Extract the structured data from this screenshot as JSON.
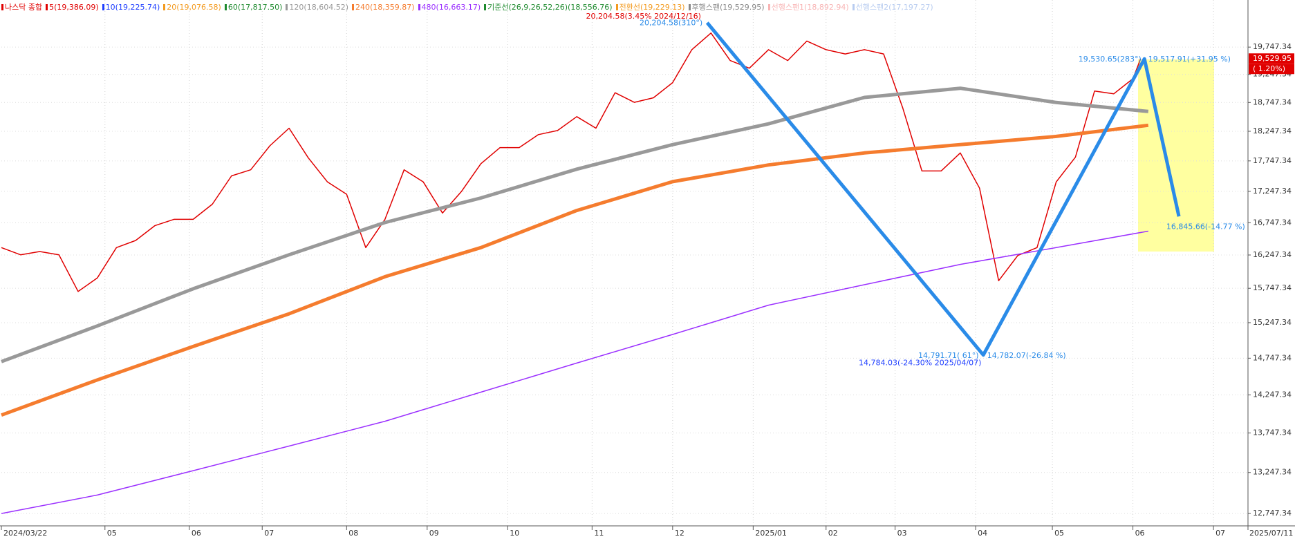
{
  "chart_data": {
    "type": "line",
    "log_scale": true,
    "grid": true,
    "xlim": [
      0,
      325
    ],
    "xticks": [
      {
        "value": 0,
        "label": "2024/03/22"
      },
      {
        "value": 27,
        "label": "05"
      },
      {
        "value": 49,
        "label": "06"
      },
      {
        "value": 68,
        "label": "07"
      },
      {
        "value": 90,
        "label": "08"
      },
      {
        "value": 111,
        "label": "09"
      },
      {
        "value": 132,
        "label": "10"
      },
      {
        "value": 154,
        "label": "11"
      },
      {
        "value": 175,
        "label": "12"
      },
      {
        "value": 196,
        "label": "2025/01"
      },
      {
        "value": 215,
        "label": "02"
      },
      {
        "value": 233,
        "label": "03"
      },
      {
        "value": 254,
        "label": "04"
      },
      {
        "value": 274,
        "label": "05"
      },
      {
        "value": 295,
        "label": "06"
      },
      {
        "value": 316,
        "label": "07"
      },
      {
        "value": 325,
        "label": "2025/07/11"
      }
    ],
    "ylim": [
      12600,
      20640
    ],
    "yticks": [
      {
        "value": 12747.34,
        "label": "12,747.34"
      },
      {
        "value": 13247.34,
        "label": "13,247.34"
      },
      {
        "value": 13747.34,
        "label": "13,747.34"
      },
      {
        "value": 14247.34,
        "label": "14,247.34"
      },
      {
        "value": 14747.34,
        "label": "14,747.34"
      },
      {
        "value": 15247.34,
        "label": "15,247.34"
      },
      {
        "value": 15747.34,
        "label": "15,747.34"
      },
      {
        "value": 16247.34,
        "label": "16,247.34"
      },
      {
        "value": 16747.34,
        "label": "16,747.34"
      },
      {
        "value": 17247.34,
        "label": "17,247.34"
      },
      {
        "value": 17747.34,
        "label": "17,747.34"
      },
      {
        "value": 18247.34,
        "label": "18,247.34"
      },
      {
        "value": 18747.34,
        "label": "18,747.34"
      },
      {
        "value": 19247.34,
        "label": "19,247.34"
      },
      {
        "value": 19747.34,
        "label": "19,747.34"
      }
    ],
    "series": [
      {
        "name": "나스닥 종합",
        "color": "#e00000",
        "width": 1.5,
        "x": [
          0,
          5,
          10,
          15,
          20,
          25,
          30,
          35,
          40,
          45,
          50,
          55,
          60,
          65,
          70,
          75,
          80,
          85,
          90,
          95,
          100,
          105,
          110,
          115,
          120,
          125,
          130,
          135,
          140,
          145,
          150,
          155,
          160,
          165,
          170,
          175,
          180,
          185,
          190,
          195,
          200,
          205,
          210,
          215,
          220,
          225,
          230,
          235,
          240,
          245,
          250,
          255,
          260,
          265,
          270,
          275,
          280,
          285,
          290,
          295,
          297
        ],
        "values": [
          16360,
          16250,
          16300,
          16250,
          15700,
          15900,
          16360,
          16470,
          16700,
          16800,
          16800,
          17040,
          17500,
          17600,
          18000,
          18300,
          17800,
          17400,
          17200,
          16360,
          16800,
          17600,
          17400,
          16900,
          17250,
          17700,
          17970,
          17970,
          18190,
          18260,
          18500,
          18300,
          18920,
          18750,
          18830,
          19100,
          19700,
          20010,
          19500,
          19360,
          19700,
          19500,
          19860,
          19700,
          19620,
          19700,
          19620,
          18650,
          17580,
          17580,
          17880,
          17300,
          15860,
          16240,
          16360,
          17400,
          17810,
          18950,
          18900,
          19170,
          19530
        ]
      },
      {
        "name": "5(19,386.09)",
        "color": "#e00000"
      },
      {
        "name": "10(19,225.74)",
        "color": "#1f3fff"
      },
      {
        "name": "20(19,076.58)",
        "color": "#f39a1e"
      },
      {
        "name": "60(17,817.50)",
        "color": "#1e8a2e"
      },
      {
        "name": "120(18,604.52)",
        "color": "#999999",
        "width": 5,
        "x": [
          0,
          25,
          50,
          75,
          100,
          125,
          150,
          175,
          200,
          225,
          250,
          275,
          299
        ],
        "values": [
          14700,
          15200,
          15740,
          16250,
          16750,
          17140,
          17610,
          18020,
          18375,
          18836,
          19000,
          18747,
          18590
        ]
      },
      {
        "name": "240(18,359.87)",
        "color": "#f57c2e",
        "width": 5,
        "x": [
          0,
          25,
          50,
          75,
          100,
          125,
          150,
          175,
          200,
          225,
          250,
          275,
          299
        ],
        "values": [
          13980,
          14450,
          14910,
          15375,
          15920,
          16360,
          16940,
          17405,
          17680,
          17880,
          18020,
          18160,
          18350
        ]
      },
      {
        "name": "480(16,663.17)",
        "color": "#9b30ff",
        "width": 1.5,
        "x": [
          0,
          25,
          50,
          75,
          100,
          125,
          150,
          175,
          200,
          225,
          250,
          275,
          299
        ],
        "values": [
          12747,
          12970,
          13270,
          13580,
          13900,
          14285,
          14680,
          15080,
          15500,
          15800,
          16105,
          16360,
          16615
        ]
      },
      {
        "name": "기준선(26,9,26,52,26)(18,556.76)",
        "color": "#1e8a2e"
      },
      {
        "name": "전환선(19,229.13)",
        "color": "#f39a1e"
      },
      {
        "name": "후행스팬(19,529.95)",
        "color": "#888888"
      },
      {
        "name": "선행스팬1(18,892.94)",
        "color": "#f8b4b4"
      },
      {
        "name": "선행스팬2(17,197.27)",
        "color": "#b8ccf0"
      }
    ],
    "zigzag": {
      "color": "#2a8be8",
      "x": [
        184,
        256,
        298,
        307
      ],
      "values": [
        20204.58,
        14791.71,
        19530.65,
        16845.66
      ]
    },
    "annotations": [
      {
        "text": "20,204.58(3.45% 2024/12/16)",
        "color": "#e00000",
        "anchor": "end",
        "x": 182.4,
        "y": 20322
      },
      {
        "text": "20,204.58(310°)",
        "color": "#2a8be8",
        "anchor": "end",
        "x": 182.8,
        "y": 20195
      },
      {
        "text": "14,791.71( 61°)",
        "color": "#2a8be8",
        "anchor": "end",
        "x": 254.8,
        "y": 14781
      },
      {
        "text": "14,782.07(-26.84 %)",
        "color": "#2a8be8",
        "anchor": "start",
        "x": 257,
        "y": 14781
      },
      {
        "text": "14,784.03(-24.30% 2025/04/07)",
        "color": "#1f3fff",
        "anchor": "end",
        "x": 255.5,
        "y": 14678
      },
      {
        "text": "19,530.65(283°)",
        "color": "#2a8be8",
        "anchor": "end",
        "x": 297.2,
        "y": 19518
      },
      {
        "text": "19,517.91(+31.95 %)",
        "color": "#2a8be8",
        "anchor": "start",
        "x": 299,
        "y": 19518
      },
      {
        "text": "16,845.66(-14.77 %)",
        "color": "#2a8be8",
        "anchor": "start",
        "x": 303.7,
        "y": 16679
      }
    ],
    "last_price": {
      "value": 19529.95,
      "label": "19,529.95"
    },
    "last_change": "( 1.20%)"
  }
}
